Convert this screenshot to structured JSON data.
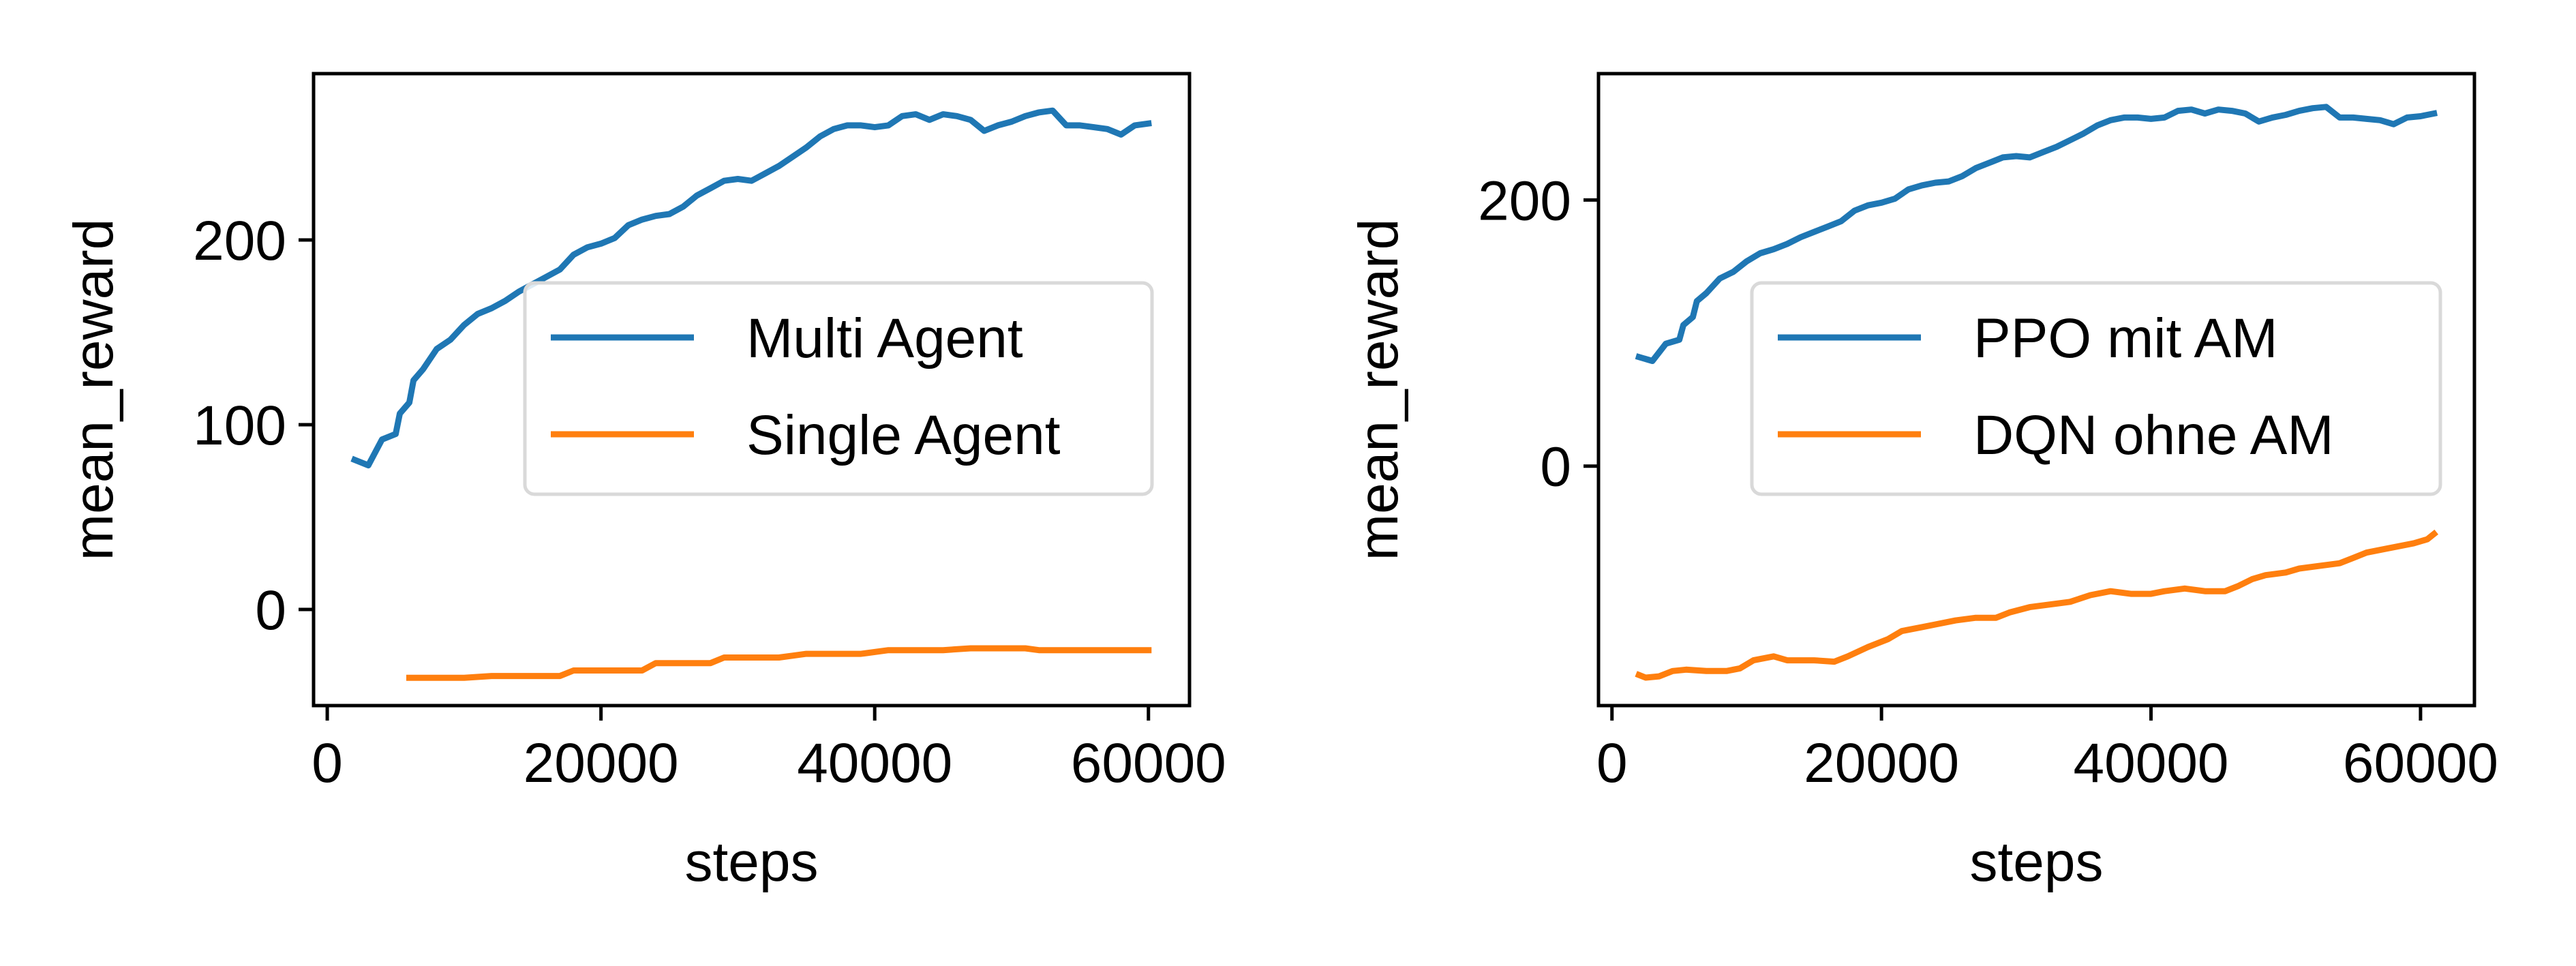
{
  "chart_data": [
    {
      "type": "line",
      "xlabel": "steps",
      "ylabel": "mean_reward",
      "xlim": [
        -1000,
        63000
      ],
      "ylim": [
        -52,
        290
      ],
      "xticks": [
        0,
        20000,
        40000,
        60000
      ],
      "xtick_labels": [
        "0",
        "20000",
        "40000",
        "60000"
      ],
      "yticks": [
        0,
        100,
        200
      ],
      "ytick_labels": [
        "0",
        "100",
        "200"
      ],
      "grid": false,
      "legend": "center-right",
      "series": [
        {
          "name": "Multi Agent",
          "color": "#1f77b4",
          "points": [
            [
              2000,
              81
            ],
            [
              3000,
              78
            ],
            [
              4000,
              92
            ],
            [
              5000,
              95
            ],
            [
              5300,
              106
            ],
            [
              6000,
              112
            ],
            [
              6300,
              124
            ],
            [
              7000,
              130
            ],
            [
              8000,
              141
            ],
            [
              9000,
              146
            ],
            [
              10000,
              154
            ],
            [
              11000,
              160
            ],
            [
              12000,
              163
            ],
            [
              13000,
              167
            ],
            [
              14000,
              172
            ],
            [
              15000,
              176
            ],
            [
              16000,
              180
            ],
            [
              17000,
              184
            ],
            [
              18000,
              192
            ],
            [
              19000,
              196
            ],
            [
              20000,
              198
            ],
            [
              21000,
              201
            ],
            [
              22000,
              208
            ],
            [
              23000,
              211
            ],
            [
              24000,
              213
            ],
            [
              25000,
              214
            ],
            [
              26000,
              218
            ],
            [
              27000,
              224
            ],
            [
              28000,
              228
            ],
            [
              29000,
              232
            ],
            [
              30000,
              233
            ],
            [
              31000,
              232
            ],
            [
              32000,
              236
            ],
            [
              33000,
              240
            ],
            [
              34000,
              245
            ],
            [
              35000,
              250
            ],
            [
              36000,
              256
            ],
            [
              37000,
              260
            ],
            [
              38000,
              262
            ],
            [
              39000,
              262
            ],
            [
              40000,
              261
            ],
            [
              41000,
              262
            ],
            [
              42000,
              267
            ],
            [
              43000,
              268
            ],
            [
              44000,
              265
            ],
            [
              45000,
              268
            ],
            [
              46000,
              267
            ],
            [
              47000,
              265
            ],
            [
              48000,
              259
            ],
            [
              49000,
              262
            ],
            [
              50000,
              264
            ],
            [
              51000,
              267
            ],
            [
              52000,
              269
            ],
            [
              53000,
              270
            ],
            [
              54000,
              262
            ],
            [
              55000,
              262
            ],
            [
              56000,
              261
            ],
            [
              57000,
              260
            ],
            [
              58000,
              257
            ],
            [
              59000,
              262
            ],
            [
              60000,
              263
            ]
          ]
        },
        {
          "name": "Single Agent",
          "color": "#ff7f0e",
          "points": [
            [
              6000,
              -37
            ],
            [
              8000,
              -37
            ],
            [
              10000,
              -37
            ],
            [
              12000,
              -36
            ],
            [
              14000,
              -36
            ],
            [
              16000,
              -36
            ],
            [
              17000,
              -36
            ],
            [
              18000,
              -33
            ],
            [
              20000,
              -33
            ],
            [
              22000,
              -33
            ],
            [
              23000,
              -33
            ],
            [
              24000,
              -29
            ],
            [
              26000,
              -29
            ],
            [
              28000,
              -29
            ],
            [
              29000,
              -26
            ],
            [
              31000,
              -26
            ],
            [
              33000,
              -26
            ],
            [
              34000,
              -25
            ],
            [
              35000,
              -24
            ],
            [
              37000,
              -24
            ],
            [
              39000,
              -24
            ],
            [
              41000,
              -22
            ],
            [
              43000,
              -22
            ],
            [
              45000,
              -22
            ],
            [
              47000,
              -21
            ],
            [
              49000,
              -21
            ],
            [
              51000,
              -21
            ],
            [
              52000,
              -22
            ],
            [
              54000,
              -22
            ],
            [
              56000,
              -22
            ],
            [
              58000,
              -22
            ],
            [
              60000,
              -22
            ]
          ]
        }
      ]
    },
    {
      "type": "line",
      "xlabel": "steps",
      "ylabel": "mean_reward",
      "xlim": [
        -1000,
        64000
      ],
      "ylim": [
        -180,
        295
      ],
      "xticks": [
        0,
        20000,
        40000,
        60000
      ],
      "xtick_labels": [
        "0",
        "20000",
        "40000",
        "60000"
      ],
      "yticks": [
        0,
        200
      ],
      "ytick_labels": [
        "0",
        "200"
      ],
      "grid": false,
      "legend": "center-right",
      "series": [
        {
          "name": "PPO mit AM",
          "color": "#1f77b4",
          "points": [
            [
              2000,
              82
            ],
            [
              3000,
              79
            ],
            [
              4000,
              92
            ],
            [
              5000,
              95
            ],
            [
              5300,
              106
            ],
            [
              6000,
              112
            ],
            [
              6300,
              124
            ],
            [
              7000,
              130
            ],
            [
              8000,
              141
            ],
            [
              9000,
              146
            ],
            [
              10000,
              154
            ],
            [
              11000,
              160
            ],
            [
              12000,
              163
            ],
            [
              13000,
              167
            ],
            [
              14000,
              172
            ],
            [
              15000,
              176
            ],
            [
              16000,
              180
            ],
            [
              17000,
              184
            ],
            [
              18000,
              192
            ],
            [
              19000,
              196
            ],
            [
              20000,
              198
            ],
            [
              21000,
              201
            ],
            [
              22000,
              208
            ],
            [
              23000,
              211
            ],
            [
              24000,
              213
            ],
            [
              25000,
              214
            ],
            [
              26000,
              218
            ],
            [
              27000,
              224
            ],
            [
              28000,
              228
            ],
            [
              29000,
              232
            ],
            [
              30000,
              233
            ],
            [
              31000,
              232
            ],
            [
              32000,
              236
            ],
            [
              33000,
              240
            ],
            [
              34000,
              245
            ],
            [
              35000,
              250
            ],
            [
              36000,
              256
            ],
            [
              37000,
              260
            ],
            [
              38000,
              262
            ],
            [
              39000,
              262
            ],
            [
              40000,
              261
            ],
            [
              41000,
              262
            ],
            [
              42000,
              267
            ],
            [
              43000,
              268
            ],
            [
              44000,
              265
            ],
            [
              45000,
              268
            ],
            [
              46000,
              267
            ],
            [
              47000,
              265
            ],
            [
              48000,
              259
            ],
            [
              49000,
              262
            ],
            [
              50000,
              264
            ],
            [
              51000,
              267
            ],
            [
              52000,
              269
            ],
            [
              53000,
              270
            ],
            [
              54000,
              262
            ],
            [
              55000,
              262
            ],
            [
              56000,
              261
            ],
            [
              57000,
              260
            ],
            [
              58000,
              257
            ],
            [
              59000,
              262
            ],
            [
              60000,
              263
            ],
            [
              61000,
              265
            ]
          ]
        },
        {
          "name": "DQN ohne AM",
          "color": "#ff7f0e",
          "points": [
            [
              2000,
              -157
            ],
            [
              2500,
              -159
            ],
            [
              3500,
              -158
            ],
            [
              4500,
              -154
            ],
            [
              5500,
              -153
            ],
            [
              7000,
              -154
            ],
            [
              8500,
              -154
            ],
            [
              9500,
              -152
            ],
            [
              10500,
              -146
            ],
            [
              12000,
              -143
            ],
            [
              13000,
              -146
            ],
            [
              15000,
              -146
            ],
            [
              16500,
              -147
            ],
            [
              17500,
              -143
            ],
            [
              19000,
              -136
            ],
            [
              20500,
              -130
            ],
            [
              21500,
              -124
            ],
            [
              23000,
              -121
            ],
            [
              24000,
              -119
            ],
            [
              25500,
              -116
            ],
            [
              27000,
              -114
            ],
            [
              28500,
              -114
            ],
            [
              29500,
              -110
            ],
            [
              31000,
              -106
            ],
            [
              32500,
              -104
            ],
            [
              34000,
              -102
            ],
            [
              35500,
              -97
            ],
            [
              37000,
              -94
            ],
            [
              38500,
              -96
            ],
            [
              40000,
              -96
            ],
            [
              41000,
              -94
            ],
            [
              42500,
              -92
            ],
            [
              44000,
              -94
            ],
            [
              45500,
              -94
            ],
            [
              46500,
              -90
            ],
            [
              47500,
              -85
            ],
            [
              48500,
              -82
            ],
            [
              50000,
              -80
            ],
            [
              51000,
              -77
            ],
            [
              52500,
              -75
            ],
            [
              54000,
              -73
            ],
            [
              55000,
              -69
            ],
            [
              56000,
              -65
            ],
            [
              57500,
              -62
            ],
            [
              58500,
              -60
            ],
            [
              59500,
              -58
            ],
            [
              60500,
              -55
            ],
            [
              61000,
              -51
            ]
          ]
        }
      ]
    }
  ]
}
